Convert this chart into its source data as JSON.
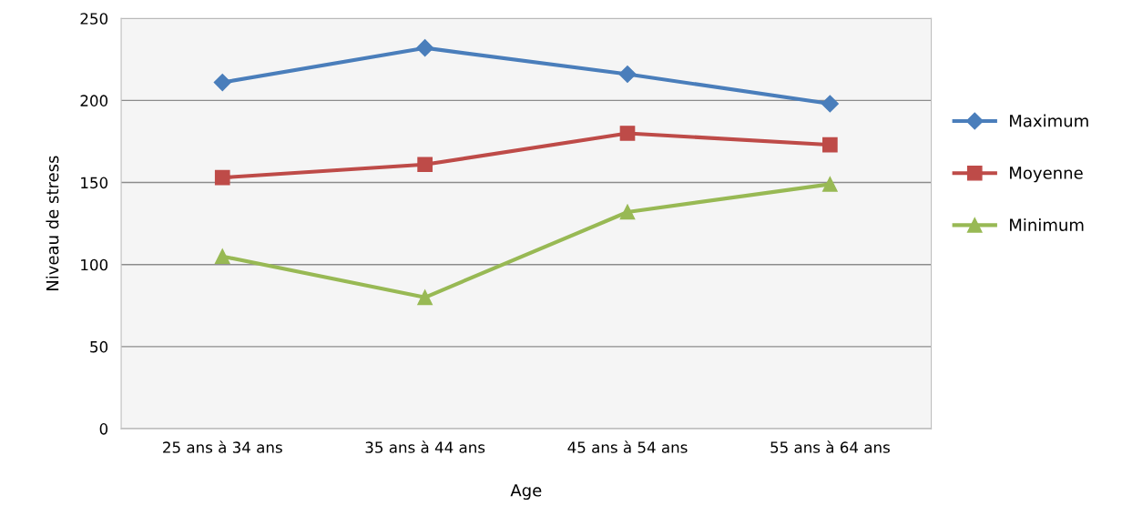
{
  "chart_data": {
    "type": "line",
    "xlabel": "Age",
    "ylabel": "Niveau de stress",
    "categories": [
      "25 ans à 34 ans",
      "35 ans à 44 ans",
      "45 ans à 54 ans",
      "55 ans à 64 ans"
    ],
    "series": [
      {
        "name": "Maximum",
        "color": "#4a7ebb",
        "marker": "diamond",
        "values": [
          211,
          232,
          216,
          198
        ]
      },
      {
        "name": "Moyenne",
        "color": "#be4b48",
        "marker": "square",
        "values": [
          153,
          161,
          180,
          173
        ]
      },
      {
        "name": "Minimum",
        "color": "#98b954",
        "marker": "triangle",
        "values": [
          105,
          80,
          132,
          149
        ]
      }
    ],
    "ylim": [
      0,
      250
    ],
    "yticks": [
      0,
      50,
      100,
      150,
      200,
      250
    ],
    "grid": "y",
    "legend": "right",
    "line_style": "solid"
  }
}
